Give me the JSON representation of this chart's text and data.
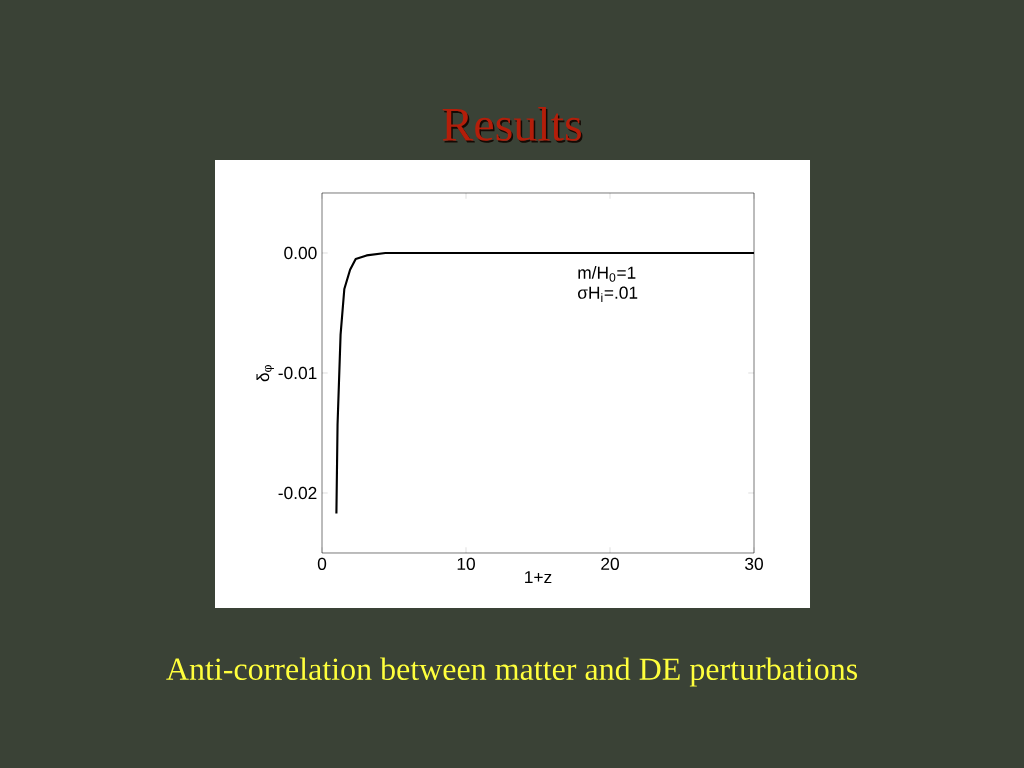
{
  "chart_data": {
    "type": "line",
    "title": "Results",
    "xlabel": "1+z",
    "ylabel": "δ$_{φ}$",
    "x": [
      1.0,
      1.08,
      1.29,
      1.55,
      1.95,
      2.34,
      3.1,
      4.4,
      8.4,
      30
    ],
    "series": [
      {
        "color": "#000000",
        "values": [
          -0.0217,
          -0.0143,
          -0.0068,
          -0.003,
          -0.0014,
          -0.0005,
          -0.0002,
          0,
          0,
          0
        ]
      }
    ],
    "xlim": [
      0,
      30
    ],
    "ylim": [
      -0.025,
      0.005
    ],
    "xticks": [
      0,
      10,
      20,
      30
    ],
    "yticks": [
      {
        "value": -0.02,
        "label": "-0.02"
      },
      {
        "value": -0.01,
        "label": "-0.01"
      },
      {
        "value": 0,
        "label": "0.00"
      }
    ],
    "annotations": [
      "m/H$_{0}$=1",
      "σH$_{i}$=.01",
      "Anti-correlation between matter and DE perturbations"
    ],
    "grid": false,
    "marker": "none",
    "line_style": "solid"
  }
}
